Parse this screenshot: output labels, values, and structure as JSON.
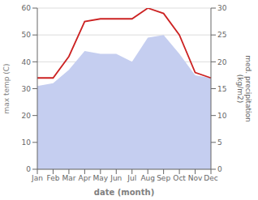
{
  "chart_data": {
    "type": "line",
    "xlabel": "date (month)",
    "ylabel": "max temp (C)",
    "y2label": "med. precipitation\n(kg/m2)",
    "categories": [
      "Jan",
      "Feb",
      "Mar",
      "Apr",
      "May",
      "Jun",
      "Jul",
      "Aug",
      "Sep",
      "Oct",
      "Nov",
      "Dec"
    ],
    "series": [
      {
        "type": "area",
        "color": "#c5cef0",
        "values": [
          31,
          32,
          37,
          44,
          43,
          43,
          40,
          49,
          50,
          43,
          35,
          34
        ]
      },
      {
        "type": "line",
        "color": "#cc2222",
        "values": [
          34,
          34,
          42,
          55,
          56,
          56,
          56,
          60,
          58,
          50,
          36,
          34
        ]
      }
    ],
    "ylim": [
      0,
      60
    ],
    "yticks": [
      0,
      10,
      20,
      30,
      40,
      50,
      60
    ],
    "y2lim": [
      0,
      30
    ],
    "y2ticks": [
      0,
      5,
      10,
      15,
      20,
      25,
      30
    ],
    "grid": true
  }
}
